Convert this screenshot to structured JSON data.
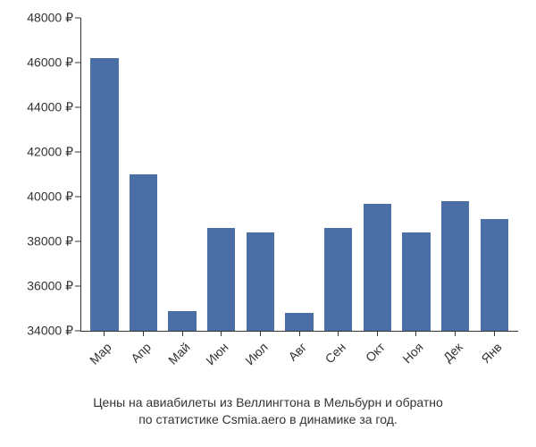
{
  "chart": {
    "type": "bar",
    "categories": [
      "Мар",
      "Апр",
      "Май",
      "Июн",
      "Июл",
      "Авг",
      "Сен",
      "Окт",
      "Ноя",
      "Дек",
      "Янв"
    ],
    "values": [
      46200,
      41000,
      34900,
      38600,
      38400,
      34800,
      38600,
      39700,
      38400,
      39800,
      39000
    ],
    "bar_color": "#4a6fa5",
    "ylim": [
      34000,
      48000
    ],
    "ytick_step": 2000,
    "ytick_labels": [
      "34000 ₽",
      "36000 ₽",
      "38000 ₽",
      "40000 ₽",
      "42000 ₽",
      "44000 ₽",
      "46000 ₽",
      "48000 ₽"
    ],
    "background_color": "#ffffff",
    "axis_color": "#333333",
    "text_color": "#333333",
    "label_fontsize": 14,
    "caption_fontsize": 14,
    "bar_width_ratio": 0.72
  },
  "caption": {
    "line1": "Цены на авиабилеты из Веллингтона в Мельбурн и обратно",
    "line2": "по статистике Csmia.aero в динамике за год."
  }
}
